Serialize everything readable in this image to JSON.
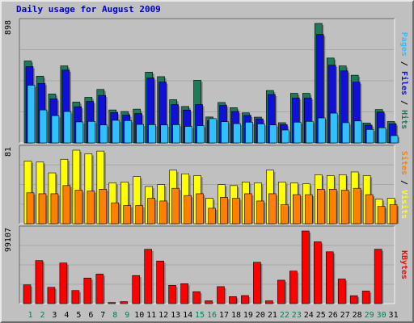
{
  "title": "Daily usage for August 2009",
  "chart_data": [
    {
      "type": "bar",
      "categories": [
        "1",
        "2",
        "3",
        "4",
        "5",
        "6",
        "7",
        "8",
        "9",
        "10",
        "11",
        "12",
        "13",
        "14",
        "15",
        "16",
        "17",
        "18",
        "19",
        "20",
        "21",
        "22",
        "23",
        "24",
        "25",
        "26",
        "27",
        "28",
        "29",
        "30",
        "31"
      ],
      "weekend_days": [
        "1",
        "2",
        "8",
        "9",
        "15",
        "16",
        "22",
        "23",
        "29",
        "30"
      ],
      "max_label": "898",
      "series": [
        {
          "name": "Hits",
          "color": "#1e7a57",
          "values": [
            616,
            502,
            368,
            579,
            307,
            343,
            402,
            248,
            236,
            254,
            532,
            498,
            325,
            274,
            471,
            195,
            304,
            265,
            226,
            194,
            394,
            152,
            373,
            373,
            898,
            638,
            579,
            509,
            150,
            251,
            161
          ]
        },
        {
          "name": "Files",
          "color": "#1010d8",
          "values": [
            574,
            447,
            332,
            547,
            272,
            312,
            357,
            228,
            210,
            221,
            488,
            457,
            288,
            247,
            288,
            167,
            282,
            236,
            206,
            181,
            364,
            137,
            338,
            338,
            815,
            584,
            541,
            457,
            134,
            232,
            144
          ]
        },
        {
          "name": "Pages",
          "color": "#30c0ff",
          "values": [
            433,
            248,
            205,
            236,
            158,
            162,
            135,
            170,
            168,
            139,
            137,
            135,
            137,
            124,
            130,
            183,
            160,
            145,
            156,
            143,
            135,
            97,
            156,
            162,
            188,
            224,
            152,
            165,
            101,
            114,
            55
          ]
        }
      ]
    },
    {
      "type": "bar",
      "categories": [
        "1",
        "2",
        "3",
        "4",
        "5",
        "6",
        "7",
        "8",
        "9",
        "10",
        "11",
        "12",
        "13",
        "14",
        "15",
        "16",
        "17",
        "18",
        "19",
        "20",
        "21",
        "22",
        "23",
        "24",
        "25",
        "26",
        "27",
        "28",
        "29",
        "30",
        "31"
      ],
      "max_label": "81",
      "series": [
        {
          "name": "Visits",
          "color": "#ffff00",
          "values": [
            69,
            68,
            56,
            71,
            81,
            77,
            80,
            45,
            46,
            52,
            41,
            43,
            59,
            55,
            53,
            28,
            43,
            42,
            46,
            45,
            59,
            46,
            45,
            44,
            54,
            53,
            54,
            57,
            53,
            27,
            28
          ]
        },
        {
          "name": "Sites",
          "color": "#ff8000",
          "values": [
            34,
            33,
            33,
            42,
            37,
            36,
            38,
            23,
            20,
            20,
            28,
            25,
            39,
            31,
            33,
            17,
            29,
            28,
            33,
            25,
            33,
            21,
            32,
            32,
            38,
            38,
            37,
            39,
            32,
            19,
            21
          ]
        }
      ]
    },
    {
      "type": "bar",
      "categories": [
        "1",
        "2",
        "3",
        "4",
        "5",
        "6",
        "7",
        "8",
        "9",
        "10",
        "11",
        "12",
        "13",
        "14",
        "15",
        "16",
        "17",
        "18",
        "19",
        "20",
        "21",
        "22",
        "23",
        "24",
        "25",
        "26",
        "27",
        "28",
        "29",
        "30",
        "31"
      ],
      "max_label": "99107",
      "series": [
        {
          "name": "KBytes",
          "color": "#ff0000",
          "values": [
            25600,
            58700,
            22200,
            55400,
            17900,
            34900,
            40300,
            1500,
            2700,
            38300,
            74100,
            58100,
            25000,
            27200,
            16300,
            3800,
            23200,
            9600,
            11000,
            56400,
            3800,
            32000,
            44400,
            99107,
            84300,
            70700,
            33600,
            10800,
            17200,
            74200,
            0
          ]
        }
      ]
    }
  ]
}
